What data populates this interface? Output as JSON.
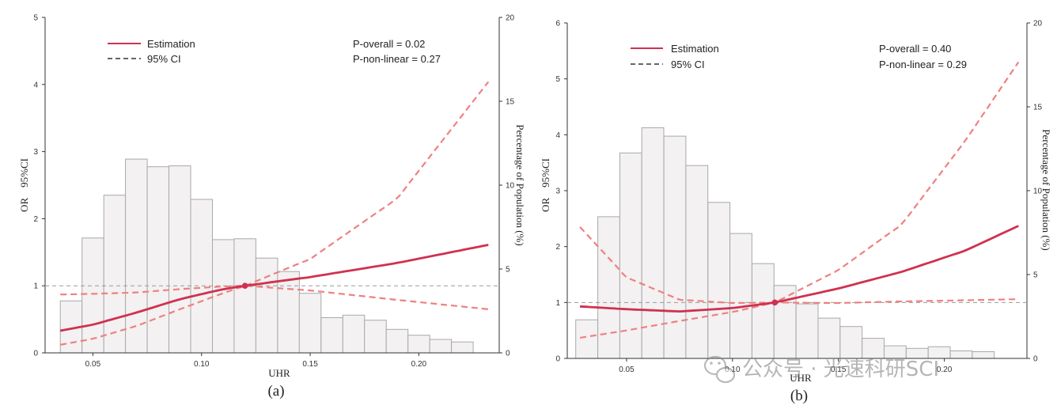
{
  "watermark": "公众号 · 光速科研SCI",
  "chart_data": [
    {
      "type": "restricted-cubic-spline with histogram",
      "panel_label": "(a)",
      "xlabel": "UHR",
      "ylabel": "OR    95%CI",
      "y2label": "Percentage of Population (%)",
      "xlim": [
        0.028,
        0.237
      ],
      "ylim": [
        0,
        5
      ],
      "y2lim": [
        0,
        20
      ],
      "xticks": [
        "0.05",
        "0.10",
        "0.15",
        "0.20"
      ],
      "xtick_values": [
        0.05,
        0.1,
        0.15,
        0.2
      ],
      "yticks": [
        "0",
        "1",
        "2",
        "3",
        "4",
        "5"
      ],
      "y2ticks": [
        "0",
        "5",
        "10",
        "15",
        "20"
      ],
      "legend": {
        "estimation": "Estimation",
        "ci": "95% CI"
      },
      "p_overall": "P-overall = 0.02",
      "p_nonlinear": "P-non-linear = 0.27",
      "reference_line": 1,
      "reference_point": {
        "x": 0.12,
        "y": 1.0
      },
      "histogram": {
        "bin_start": 0.035,
        "bin_width": 0.01,
        "percent": [
          3.1,
          6.85,
          9.4,
          11.55,
          11.1,
          11.15,
          9.15,
          6.75,
          6.8,
          5.65,
          4.85,
          3.55,
          2.1,
          2.25,
          1.95,
          1.4,
          1.05,
          0.8,
          0.65
        ]
      },
      "estimate": {
        "x": [
          0.035,
          0.05,
          0.07,
          0.09,
          0.11,
          0.12,
          0.15,
          0.19,
          0.232
        ],
        "y": [
          0.33,
          0.42,
          0.6,
          0.8,
          0.95,
          1.0,
          1.13,
          1.34,
          1.61
        ]
      },
      "ci_lower": {
        "x": [
          0.035,
          0.05,
          0.07,
          0.09,
          0.11,
          0.12,
          0.15,
          0.19,
          0.232
        ],
        "y": [
          0.12,
          0.21,
          0.4,
          0.65,
          0.89,
          1.0,
          0.93,
          0.79,
          0.65
        ]
      },
      "ci_upper": {
        "x": [
          0.035,
          0.05,
          0.07,
          0.09,
          0.11,
          0.12,
          0.15,
          0.19,
          0.232
        ],
        "y": [
          0.87,
          0.88,
          0.9,
          0.95,
          0.99,
          1.0,
          1.4,
          2.3,
          4.04
        ]
      }
    },
    {
      "type": "restricted-cubic-spline with histogram",
      "panel_label": "(b)",
      "xlabel": "UHR",
      "ylabel": "OR    95%CI",
      "y2label": "Percentage of Population (%)",
      "xlim": [
        0.022,
        0.239
      ],
      "ylim": [
        0,
        6
      ],
      "y2lim": [
        0,
        20
      ],
      "xticks": [
        "0.05",
        "0.10",
        "0.15",
        "0.20"
      ],
      "xtick_values": [
        0.05,
        0.1,
        0.15,
        0.2
      ],
      "yticks": [
        "0",
        "1",
        "2",
        "3",
        "4",
        "5",
        "6"
      ],
      "y2ticks": [
        "0",
        "5",
        "10",
        "15",
        "20"
      ],
      "legend": {
        "estimation": "Estimation",
        "ci": "95% CI"
      },
      "p_overall": "P-overall = 0.40",
      "p_nonlinear": "P-non-linear = 0.29",
      "reference_line": 1,
      "reference_point": {
        "x": 0.12,
        "y": 1.0
      },
      "histogram": {
        "bin_start": 0.026,
        "bin_width": 0.0104,
        "percent": [
          2.3,
          8.45,
          12.25,
          13.75,
          13.25,
          11.5,
          9.3,
          7.45,
          5.65,
          4.35,
          3.25,
          2.4,
          1.9,
          1.2,
          0.75,
          0.6,
          0.7,
          0.45,
          0.4
        ]
      },
      "estimate": {
        "x": [
          0.028,
          0.05,
          0.075,
          0.1,
          0.12,
          0.15,
          0.18,
          0.21,
          0.235
        ],
        "y": [
          0.93,
          0.88,
          0.84,
          0.9,
          1.0,
          1.25,
          1.55,
          1.93,
          2.37
        ]
      },
      "ci_lower": {
        "x": [
          0.028,
          0.05,
          0.075,
          0.1,
          0.12,
          0.15,
          0.18,
          0.21,
          0.235
        ],
        "y": [
          0.37,
          0.5,
          0.67,
          0.83,
          1.0,
          0.99,
          1.02,
          1.04,
          1.06
        ]
      },
      "ci_upper": {
        "x": [
          0.028,
          0.05,
          0.075,
          0.1,
          0.12,
          0.15,
          0.18,
          0.21,
          0.235
        ],
        "y": [
          2.35,
          1.45,
          1.05,
          0.99,
          1.0,
          1.58,
          2.4,
          3.9,
          5.3
        ]
      }
    }
  ]
}
